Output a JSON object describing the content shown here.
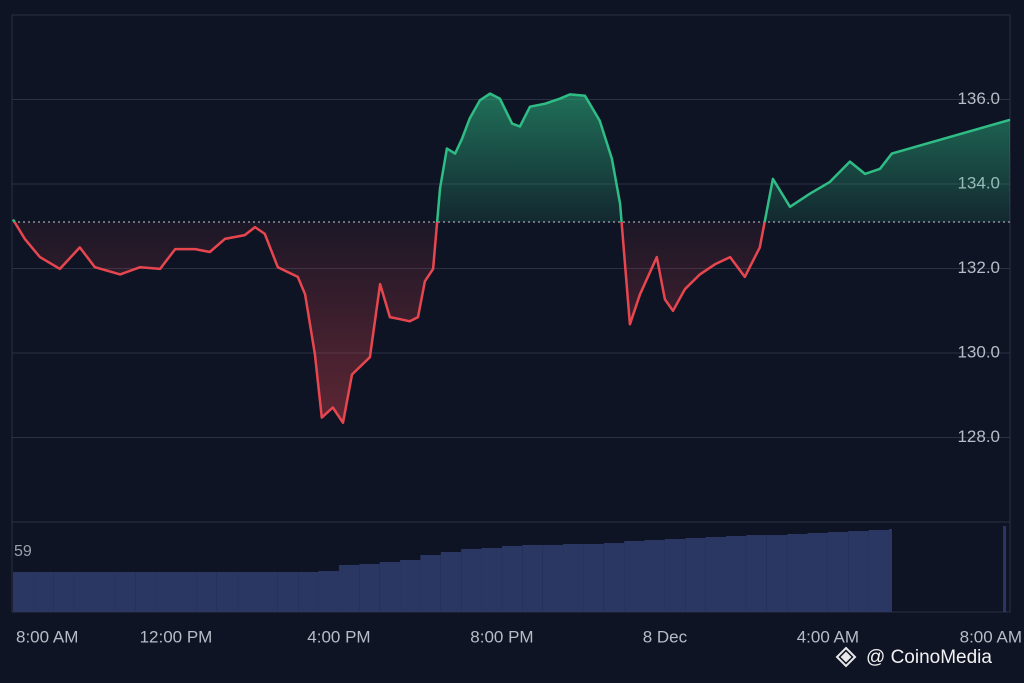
{
  "chart_data": {
    "type": "baseline",
    "baseline": 133.1,
    "x": [
      0,
      0.29,
      0.66,
      1.15,
      1.64,
      2.01,
      2.63,
      3.12,
      3.61,
      3.98,
      4.47,
      4.83,
      5.2,
      5.69,
      5.94,
      6.18,
      6.5,
      6.99,
      7.17,
      7.41,
      7.58,
      7.85,
      8.1,
      8.32,
      8.76,
      9.01,
      9.25,
      9.5,
      9.74,
      9.94,
      10.11,
      10.31,
      10.48,
      10.65,
      10.85,
      11.02,
      11.21,
      11.46,
      11.71,
      11.95,
      12.25,
      12.44,
      12.69,
      13.06,
      13.42,
      13.67,
      14.04,
      14.4,
      14.7,
      14.9,
      15.14,
      15.39,
      15.8,
      16,
      16.2,
      16.49,
      16.86,
      17.23,
      17.6,
      17.96,
      18.33,
      18.65,
      19.07,
      19.56,
      20.05,
      20.54,
      20.91,
      21.28,
      21.57,
      24.47
    ],
    "values": [
      133.16,
      132.7,
      132.27,
      131.99,
      132.5,
      132.03,
      131.86,
      132.03,
      131.99,
      132.46,
      132.46,
      132.39,
      132.7,
      132.79,
      132.98,
      132.82,
      132.03,
      131.8,
      131.39,
      129.97,
      128.47,
      128.71,
      128.35,
      129.49,
      129.9,
      131.63,
      130.85,
      130.8,
      130.75,
      130.85,
      131.7,
      131.99,
      133.89,
      134.84,
      134.72,
      135.07,
      135.55,
      135.98,
      136.14,
      136.02,
      135.43,
      135.36,
      135.83,
      135.9,
      136.02,
      136.12,
      136.09,
      135.5,
      134.6,
      133.53,
      130.68,
      131.39,
      132.27,
      131.27,
      131.0,
      131.51,
      131.86,
      132.1,
      132.27,
      131.8,
      132.5,
      134.12,
      133.46,
      133.77,
      134.05,
      134.53,
      134.24,
      134.36,
      134.72,
      135.52
    ],
    "up_color": "#2ebd85",
    "down_color": "#e8464f",
    "xlim": [
      0,
      24.47
    ],
    "ylim": [
      126,
      138
    ],
    "xticks": [
      {
        "value": 0,
        "label": "8:00 AM"
      },
      {
        "value": 4,
        "label": "12:00 PM"
      },
      {
        "value": 8,
        "label": "4:00 PM"
      },
      {
        "value": 12,
        "label": "8:00 PM"
      },
      {
        "value": 16,
        "label": "8 Dec"
      },
      {
        "value": 20,
        "label": "4:00 AM"
      },
      {
        "value": 24,
        "label": "8:00 AM"
      }
    ],
    "yticks": [
      {
        "value": 128,
        "label": "128.0"
      },
      {
        "value": 130,
        "label": "130.0"
      },
      {
        "value": 132,
        "label": "132.0"
      },
      {
        "value": 134,
        "label": "134.0"
      },
      {
        "value": 136,
        "label": "136.0"
      }
    ],
    "grid": true,
    "volume": {
      "label": "59",
      "color": "#2b3763",
      "x": [
        0,
        0.5,
        1,
        1.5,
        2,
        2.5,
        3,
        3.5,
        4,
        4.5,
        5,
        5.5,
        6,
        6.5,
        7,
        7.5,
        8,
        8.5,
        9,
        9.5,
        10,
        10.5,
        11,
        11.5,
        12,
        12.5,
        13,
        13.5,
        14,
        14.5,
        15,
        15.5,
        16,
        16.5,
        17,
        17.5,
        18,
        18.5,
        19,
        19.5,
        20,
        20.5,
        21,
        21.5,
        24.3
      ],
      "values": [
        40,
        40,
        40,
        40,
        40,
        40,
        40,
        40,
        40,
        40,
        40,
        40,
        40,
        40,
        40,
        41,
        47,
        48,
        50,
        52,
        57,
        60,
        63,
        64,
        66,
        67,
        67,
        68,
        68,
        69,
        71,
        72,
        73,
        74,
        75,
        76,
        77,
        77,
        78,
        79,
        80,
        81,
        82,
        83,
        86
      ],
      "ylim": [
        0,
        90
      ]
    },
    "watermark": "@ CoinoMedia"
  }
}
